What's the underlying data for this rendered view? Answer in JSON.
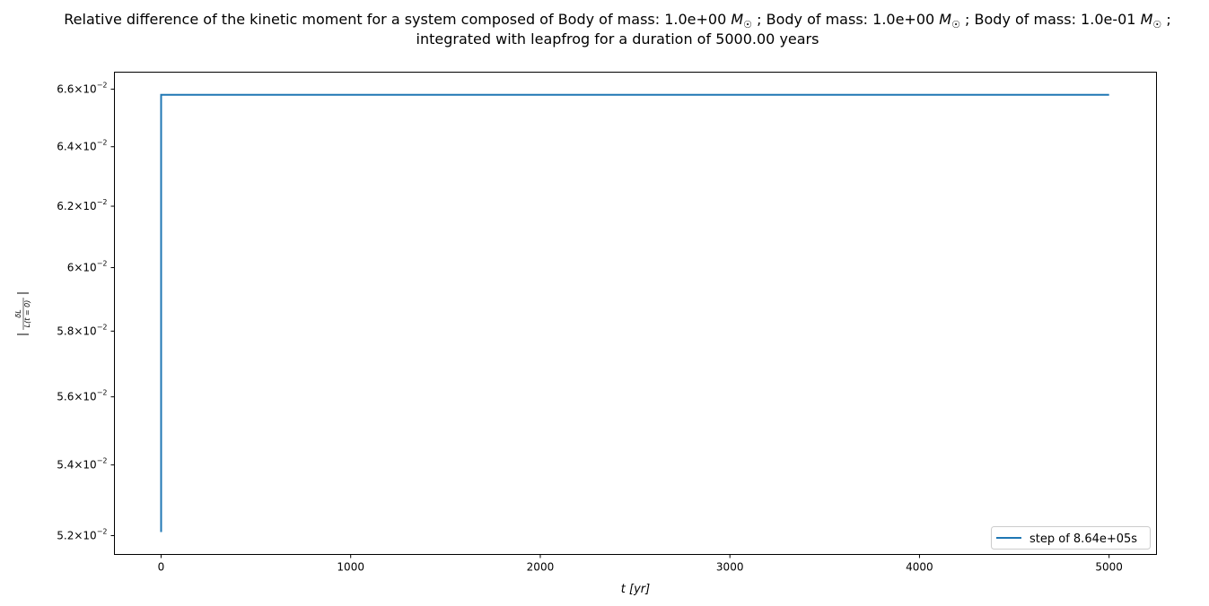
{
  "chart_data": {
    "type": "line",
    "title_line1_parts": [
      "Relative difference of the kinetic moment for a system composed of Body of mass: 1.0e+00 ",
      "M",
      "☉",
      " ; Body of mass: 1.0e+00 ",
      "M",
      "☉",
      " ; Body of mass: 1.0e-01 ",
      "M",
      "☉",
      " ;"
    ],
    "title_line2": "integrated with leapfrog for a duration of 5000.00 years",
    "xlabel": "t [yr]",
    "ylabel": "|δL / L(t = 0)|",
    "ylabel_num": "δL",
    "ylabel_den": "L(t = 0)",
    "xlim": [
      -246,
      5250
    ],
    "ylim": [
      0.05148,
      0.0666
    ],
    "yscale": "log",
    "grid": false,
    "legend_position": "lower right",
    "xticks": [
      0,
      1000,
      2000,
      3000,
      4000,
      5000
    ],
    "xtick_labels": [
      "0",
      "1000",
      "2000",
      "3000",
      "4000",
      "5000"
    ],
    "yticks": [
      0.052,
      0.054,
      0.056,
      0.058,
      0.06,
      0.062,
      0.064,
      0.066
    ],
    "ytick_mantissas": [
      "5.2",
      "5.4",
      "5.6",
      "5.8",
      "6",
      "6.2",
      "6.4",
      "6.6"
    ],
    "ytick_base": "10",
    "ytick_exp": "−2",
    "series": [
      {
        "name": "step of 8.64e+05s",
        "color": "#1f77b4",
        "x": [
          0,
          0.0001,
          5000
        ],
        "y": [
          0.0521,
          0.0658,
          0.0658
        ]
      }
    ]
  }
}
